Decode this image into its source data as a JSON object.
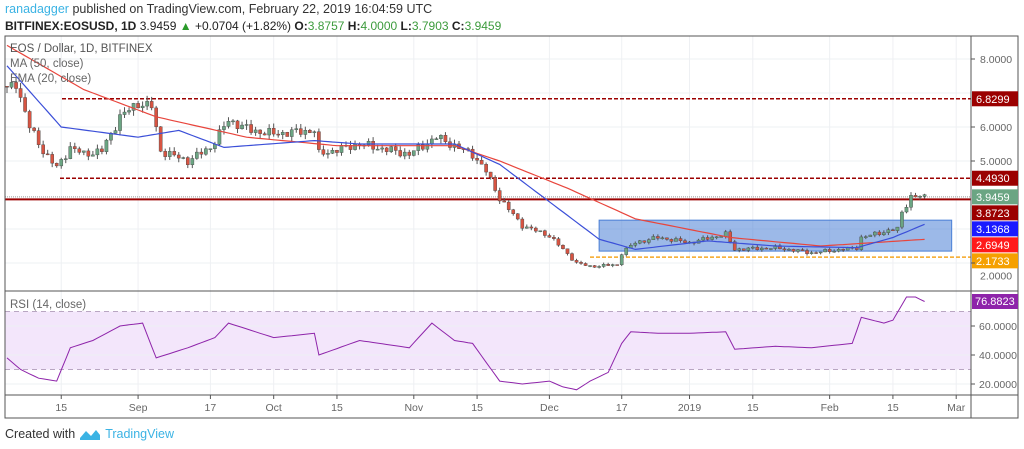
{
  "header": {
    "author": "ranadagger",
    "published": "published on TradingView.com, February 22, 2019 16:04:59 UTC",
    "symbol": "BITFINEX:EOSUSD, 1D",
    "last": "3.9459",
    "change": "+0.0704 (+1.82%)",
    "o_label": "O:",
    "o": "3.8757",
    "h_label": "H:",
    "h": "4.0000",
    "l_label": "L:",
    "l": "3.7903",
    "c_label": "C:",
    "c": "3.9459"
  },
  "legend": {
    "title": "EOS / Dollar, 1D, BITFINEX",
    "ma": "MA (50, close)",
    "ema": "EMA (20, close)",
    "rsi": "RSI (14, close)"
  },
  "footer": {
    "created": "Created with",
    "brand": "TradingView"
  },
  "colors": {
    "up": "#6ba583",
    "down": "#d75442",
    "ma": "#e8453c",
    "ema": "#3b4fd8",
    "level": "#9b0000",
    "support": "#f5a623",
    "box": "#4a7fd6",
    "rsi": "#8e24aa"
  },
  "chart_data": {
    "type": "candlestick",
    "price_axis": {
      "ticks": [
        "8.0000",
        "6.0000",
        "5.0000",
        "2.0000"
      ],
      "tick_values": [
        8,
        6,
        5,
        2
      ],
      "range": [
        1.3,
        8.6
      ]
    },
    "time_axis": {
      "labels": [
        "15",
        "Sep",
        "17",
        "Oct",
        "15",
        "Nov",
        "15",
        "Dec",
        "17",
        "2019",
        "15",
        "Feb",
        "15",
        "Mar"
      ],
      "dates": [
        "2018-08-15",
        "2018-09-01",
        "2018-09-17",
        "2018-10-01",
        "2018-10-15",
        "2018-11-01",
        "2018-11-15",
        "2018-12-01",
        "2018-12-17",
        "2019-01-01",
        "2019-01-15",
        "2019-02-01",
        "2019-02-15",
        "2019-03-01"
      ]
    },
    "price_labels": [
      {
        "text": "6.8299",
        "value": 6.8299,
        "color": "#9b0000"
      },
      {
        "text": "4.4930",
        "value": 4.493,
        "color": "#9b0000"
      },
      {
        "text": "3.9459",
        "value": 3.9459,
        "color": "#6ba583"
      },
      {
        "text": "3.8723",
        "value": 3.8723,
        "color": "#9b0000"
      },
      {
        "text": "3.1368",
        "value": 3.1368,
        "color": "#1a1aff"
      },
      {
        "text": "2.6949",
        "value": 2.6949,
        "color": "#ff1a1a"
      },
      {
        "text": "2.1733",
        "value": 2.1733,
        "color": "#f5a000"
      }
    ],
    "levels": {
      "resistance_high": 6.8299,
      "resistance_mid": 4.493,
      "resistance_line": 3.8723,
      "support": 2.1733,
      "range_box": {
        "from": "2018-12-12",
        "to": "2019-02-28",
        "top": 3.26,
        "bottom": 2.35
      }
    },
    "close_anchors": [
      [
        "2018-08-03",
        7.1
      ],
      [
        "2018-08-05",
        7.3
      ],
      [
        "2018-08-08",
        6.0
      ],
      [
        "2018-08-11",
        5.3
      ],
      [
        "2018-08-14",
        4.8
      ],
      [
        "2018-08-17",
        5.4
      ],
      [
        "2018-08-20",
        5.2
      ],
      [
        "2018-08-24",
        5.3
      ],
      [
        "2018-08-28",
        6.3
      ],
      [
        "2018-09-01",
        6.7
      ],
      [
        "2018-09-04",
        6.6
      ],
      [
        "2018-09-06",
        5.3
      ],
      [
        "2018-09-12",
        5.0
      ],
      [
        "2018-09-17",
        5.4
      ],
      [
        "2018-09-21",
        6.2
      ],
      [
        "2018-09-26",
        5.9
      ],
      [
        "2018-10-01",
        5.8
      ],
      [
        "2018-10-10",
        5.9
      ],
      [
        "2018-10-11",
        5.2
      ],
      [
        "2018-10-20",
        5.5
      ],
      [
        "2018-10-31",
        5.2
      ],
      [
        "2018-11-06",
        5.7
      ],
      [
        "2018-11-14",
        5.2
      ],
      [
        "2018-11-17",
        4.7
      ],
      [
        "2018-11-20",
        3.9
      ],
      [
        "2018-11-25",
        3.1
      ],
      [
        "2018-12-01",
        2.8
      ],
      [
        "2018-12-07",
        2.0
      ],
      [
        "2018-12-10",
        1.9
      ],
      [
        "2018-12-16",
        1.95
      ],
      [
        "2018-12-17",
        2.3
      ],
      [
        "2018-12-20",
        2.6
      ],
      [
        "2018-12-25",
        2.75
      ],
      [
        "2019-01-01",
        2.6
      ],
      [
        "2019-01-09",
        2.85
      ],
      [
        "2019-01-11",
        2.4
      ],
      [
        "2019-01-20",
        2.45
      ],
      [
        "2019-01-28",
        2.3
      ],
      [
        "2019-02-07",
        2.45
      ],
      [
        "2019-02-08",
        2.75
      ],
      [
        "2019-02-14",
        2.95
      ],
      [
        "2019-02-16",
        3.0
      ],
      [
        "2019-02-17",
        3.5
      ],
      [
        "2019-02-19",
        3.95
      ],
      [
        "2019-02-22",
        3.9459
      ]
    ],
    "ma50_anchors": [
      [
        "2018-08-03",
        8.4
      ],
      [
        "2018-08-20",
        7.1
      ],
      [
        "2018-09-05",
        6.3
      ],
      [
        "2018-09-25",
        5.7
      ],
      [
        "2018-10-15",
        5.45
      ],
      [
        "2018-11-10",
        5.45
      ],
      [
        "2018-11-20",
        5.0
      ],
      [
        "2018-12-05",
        4.2
      ],
      [
        "2018-12-20",
        3.3
      ],
      [
        "2019-01-10",
        2.75
      ],
      [
        "2019-01-30",
        2.5
      ],
      [
        "2019-02-22",
        2.6949
      ]
    ],
    "ema20_anchors": [
      [
        "2018-08-03",
        7.8
      ],
      [
        "2018-08-15",
        6.0
      ],
      [
        "2018-09-01",
        5.7
      ],
      [
        "2018-09-10",
        5.9
      ],
      [
        "2018-09-20",
        5.4
      ],
      [
        "2018-10-10",
        5.6
      ],
      [
        "2018-10-20",
        5.5
      ],
      [
        "2018-11-10",
        5.5
      ],
      [
        "2018-11-20",
        4.9
      ],
      [
        "2018-12-01",
        3.8
      ],
      [
        "2018-12-12",
        2.7
      ],
      [
        "2018-12-20",
        2.4
      ],
      [
        "2019-01-05",
        2.65
      ],
      [
        "2019-01-20",
        2.5
      ],
      [
        "2019-02-07",
        2.45
      ],
      [
        "2019-02-15",
        2.75
      ],
      [
        "2019-02-22",
        3.1368
      ]
    ],
    "rsi": {
      "axis_ticks": [
        "60.0000",
        "40.0000",
        "20.0000"
      ],
      "tick_values": [
        60,
        40,
        20
      ],
      "band": [
        30,
        70
      ],
      "last": "76.8823",
      "anchors": [
        [
          "2018-08-03",
          38
        ],
        [
          "2018-08-06",
          30
        ],
        [
          "2018-08-10",
          24
        ],
        [
          "2018-08-14",
          22
        ],
        [
          "2018-08-17",
          45
        ],
        [
          "2018-08-22",
          50
        ],
        [
          "2018-08-28",
          60
        ],
        [
          "2018-09-02",
          62
        ],
        [
          "2018-09-05",
          38
        ],
        [
          "2018-09-12",
          45
        ],
        [
          "2018-09-18",
          52
        ],
        [
          "2018-09-21",
          62
        ],
        [
          "2018-10-01",
          52
        ],
        [
          "2018-10-10",
          55
        ],
        [
          "2018-10-11",
          40
        ],
        [
          "2018-10-20",
          50
        ],
        [
          "2018-10-31",
          45
        ],
        [
          "2018-11-05",
          62
        ],
        [
          "2018-11-10",
          50
        ],
        [
          "2018-11-14",
          48
        ],
        [
          "2018-11-17",
          35
        ],
        [
          "2018-11-20",
          22
        ],
        [
          "2018-11-25",
          20
        ],
        [
          "2018-12-01",
          22
        ],
        [
          "2018-12-04",
          18
        ],
        [
          "2018-12-07",
          16
        ],
        [
          "2018-12-10",
          22
        ],
        [
          "2018-12-14",
          28
        ],
        [
          "2018-12-17",
          48
        ],
        [
          "2018-12-19",
          56
        ],
        [
          "2018-12-25",
          55
        ],
        [
          "2019-01-01",
          55
        ],
        [
          "2019-01-09",
          56
        ],
        [
          "2019-01-11",
          44
        ],
        [
          "2019-01-20",
          46
        ],
        [
          "2019-01-28",
          45
        ],
        [
          "2019-02-06",
          48
        ],
        [
          "2019-02-08",
          66
        ],
        [
          "2019-02-13",
          62
        ],
        [
          "2019-02-15",
          64
        ],
        [
          "2019-02-18",
          80
        ],
        [
          "2019-02-20",
          80
        ],
        [
          "2019-02-22",
          76.88
        ]
      ]
    }
  }
}
